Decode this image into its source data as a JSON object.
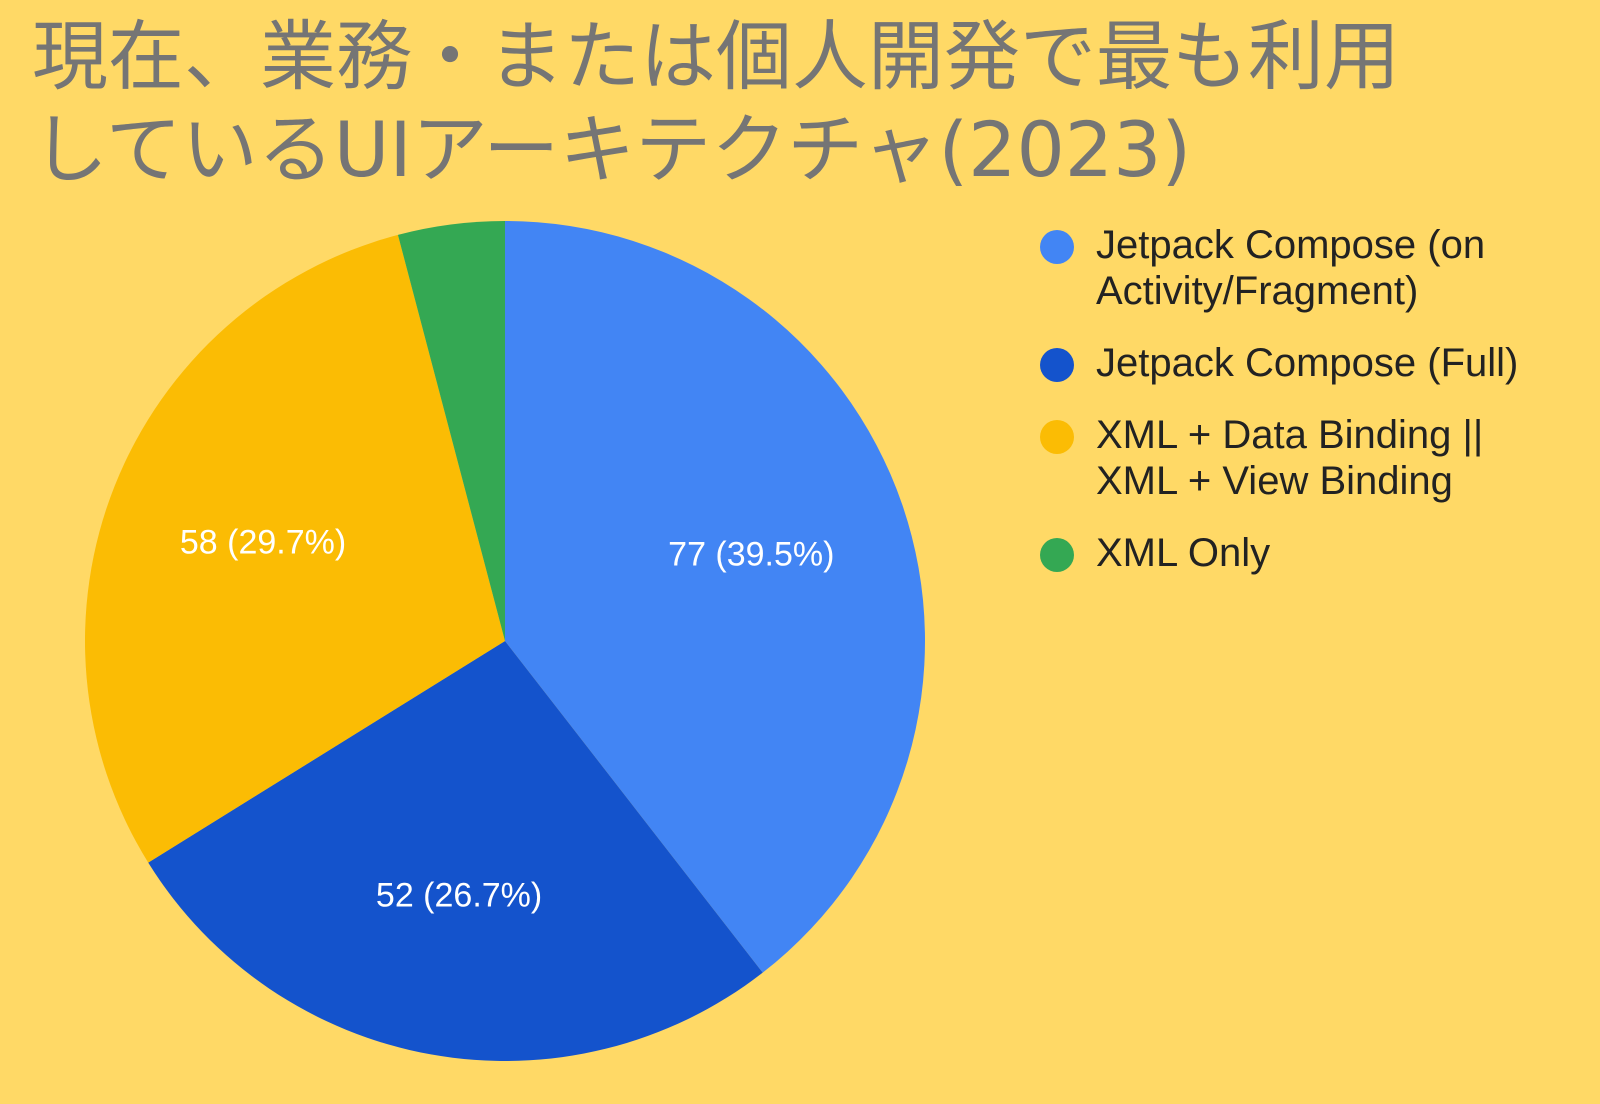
{
  "chart_data": {
    "type": "pie",
    "title_lines": [
      "現在、業務・または個人開発で最も利用",
      "しているUIアーキテクチャ(2023)"
    ],
    "legend_position": "right",
    "slices": [
      {
        "label_lines": [
          "Jetpack Compose (on",
          "Activity/Fragment)"
        ],
        "value": 77,
        "data_label": "77 (39.5%)",
        "color": "#4285F4"
      },
      {
        "label_lines": [
          "Jetpack Compose (Full)"
        ],
        "value": 52,
        "data_label": "52 (26.7%)",
        "color": "#1453CC"
      },
      {
        "label_lines": [
          "XML + Data Binding ||",
          "XML + View Binding"
        ],
        "value": 58,
        "data_label": "58 (29.7%)",
        "color": "#FBBC04"
      },
      {
        "label_lines": [
          "XML Only"
        ],
        "value": 8,
        "data_label": "",
        "color": "#34A853"
      }
    ]
  }
}
